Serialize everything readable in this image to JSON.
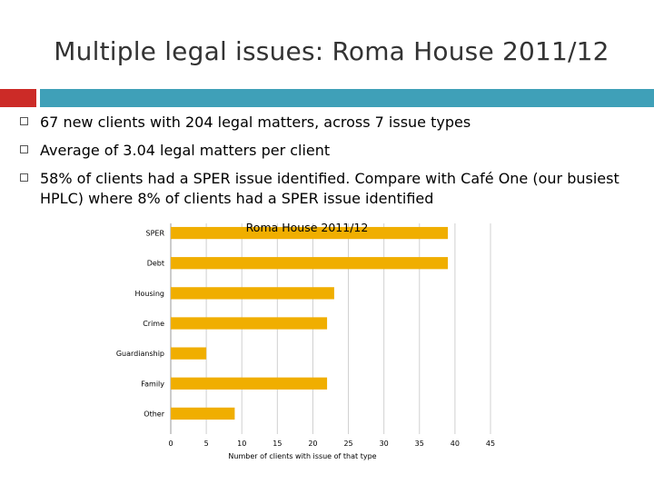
{
  "slide": {
    "title": "Multiple legal issues: Roma House 2011/12",
    "bullets": [
      "67 new clients with 204 legal matters, across 7 issue types",
      "Average of 3.04 legal matters per client",
      "58% of clients had a SPER issue identified. Compare with Café One (our busiest HPLC) where 8% of clients had a SPER issue identified"
    ],
    "colors": {
      "accent_red": "#cc2b27",
      "accent_teal": "#3fa0b8",
      "bar": "#f0ae00"
    }
  },
  "chart_data": {
    "type": "bar",
    "orientation": "horizontal",
    "title": "Roma House 2011/12",
    "categories": [
      "SPER",
      "Debt",
      "Housing",
      "Crime",
      "Guardianship",
      "Family",
      "Other"
    ],
    "values": [
      39,
      39,
      23,
      22,
      5,
      22,
      9
    ],
    "xlabel": "Number of clients with issue of that type",
    "ylabel": "",
    "xlim": [
      0,
      45
    ],
    "xticks": [
      0,
      5,
      10,
      15,
      20,
      25,
      30,
      35,
      40,
      45
    ],
    "grid": true
  }
}
